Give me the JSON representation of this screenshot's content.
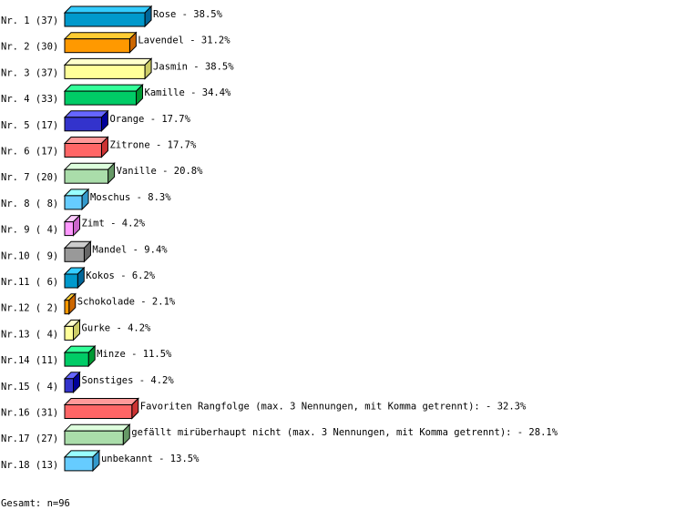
{
  "chart_data": {
    "type": "bar",
    "orientation": "horizontal",
    "style": "3d",
    "categories": [
      "Rose",
      "Lavendel",
      "Jasmin",
      "Kamille",
      "Orange",
      "Zitrone",
      "Vanille",
      "Moschus",
      "Zimt",
      "Mandel",
      "Kokos",
      "Schokolade",
      "Gurke",
      "Minze",
      "Sonstiges",
      "Favoriten Rangfolge (max. 3 Nennungen, mit Komma getrennt):",
      "gefällt mirüberhaupt nicht (max. 3 Nennungen, mit Komma getrennt):",
      "unbekannt"
    ],
    "row_labels": [
      "Nr. 1 (37)",
      "Nr. 2 (30)",
      "Nr. 3 (37)",
      "Nr. 4 (33)",
      "Nr. 5 (17)",
      "Nr. 6 (17)",
      "Nr. 7 (20)",
      "Nr. 8 ( 8)",
      "Nr. 9 ( 4)",
      "Nr.10 ( 9)",
      "Nr.11 ( 6)",
      "Nr.12 ( 2)",
      "Nr.13 ( 4)",
      "Nr.14 (11)",
      "Nr.15 ( 4)",
      "Nr.16 (31)",
      "Nr.17 (27)",
      "Nr.18 (13)"
    ],
    "values": [
      37,
      30,
      37,
      33,
      17,
      17,
      20,
      8,
      4,
      9,
      6,
      2,
      4,
      11,
      4,
      31,
      27,
      13
    ],
    "percent_labels": [
      "38.5%",
      "31.2%",
      "38.5%",
      "34.4%",
      "17.7%",
      "17.7%",
      "20.8%",
      "8.3%",
      "4.2%",
      "9.4%",
      "6.2%",
      "2.1%",
      "4.2%",
      "11.5%",
      "4.2%",
      "32.3%",
      "28.1%",
      "13.5%"
    ],
    "colors": [
      {
        "front": "#0099cc",
        "top": "#33ccff",
        "side": "#006699"
      },
      {
        "front": "#ff9900",
        "top": "#ffcc33",
        "side": "#cc6600"
      },
      {
        "front": "#ffff99",
        "top": "#ffffcc",
        "side": "#cccc66"
      },
      {
        "front": "#00cc66",
        "top": "#33ff99",
        "side": "#009933"
      },
      {
        "front": "#3333cc",
        "top": "#6666ff",
        "side": "#000099"
      },
      {
        "front": "#ff6666",
        "top": "#ff9999",
        "side": "#cc3333"
      },
      {
        "front": "#aaddaa",
        "top": "#ddffdd",
        "side": "#669966"
      },
      {
        "front": "#66ccff",
        "top": "#99ffff",
        "side": "#3399cc"
      },
      {
        "front": "#ff99ff",
        "top": "#ffccff",
        "side": "#cc66cc"
      },
      {
        "front": "#999999",
        "top": "#cccccc",
        "side": "#666666"
      }
    ],
    "grid": false,
    "legend": "none"
  },
  "footer": "Gesamt: n=96"
}
